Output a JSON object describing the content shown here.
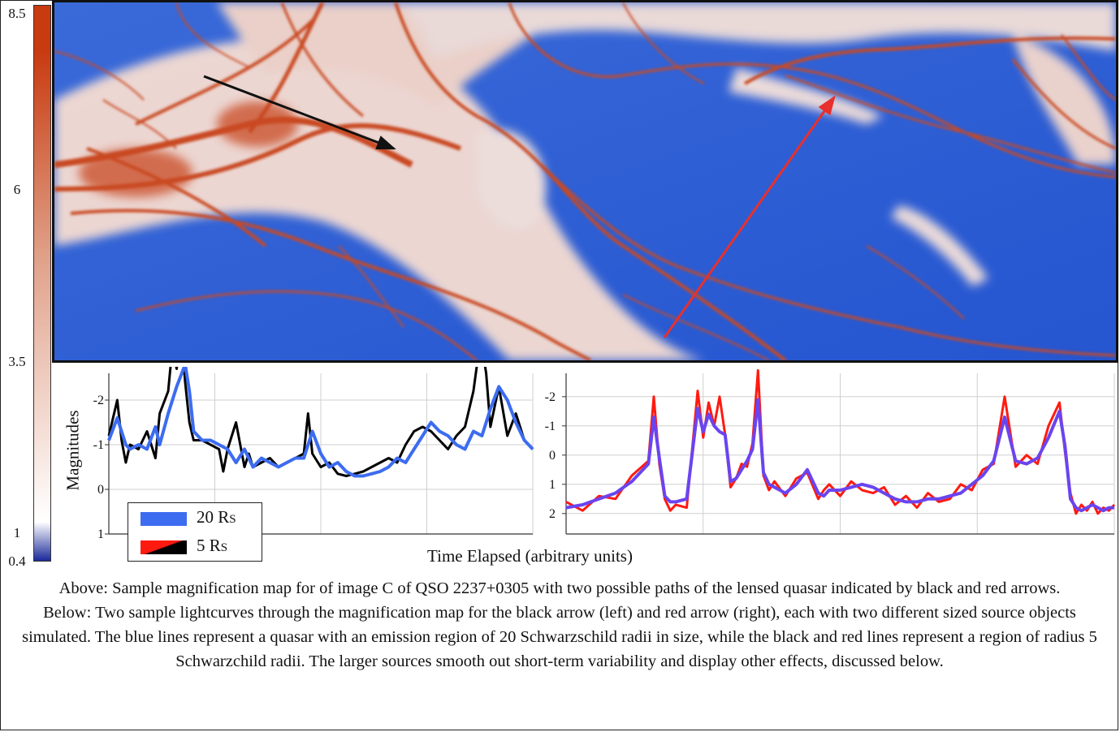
{
  "colorbar": {
    "ticks": [
      "8.5",
      "6",
      "3.5",
      "1",
      "0.4"
    ],
    "colors": {
      "top": "#c83a10",
      "mid": "#ffffff",
      "bottom": "#1a2a9a"
    }
  },
  "magmap": {
    "colors": {
      "low": "#2f5fd4",
      "caustic": "#c94a22",
      "halo": "#f4d8cc"
    },
    "arrows": [
      {
        "color": "#111111",
        "name": "black arrow"
      },
      {
        "color": "#e8302c",
        "name": "red arrow"
      }
    ]
  },
  "legend": {
    "items": [
      {
        "label": "20 R",
        "sub": "S",
        "color": "#3c6cf0"
      },
      {
        "label": "5 R",
        "sub": "S",
        "color": "#ff1a10",
        "color2": "#000000"
      }
    ]
  },
  "axes": {
    "ylabel": "Magnitudes",
    "xlabel": "Time Elapsed (arbitrary units)"
  },
  "chart_data": [
    {
      "type": "line",
      "title": "",
      "ylabel": "Magnitudes",
      "ylim": [
        1,
        -2.6
      ],
      "yticks": [
        "-2",
        "-1",
        "0",
        "1"
      ],
      "xlim": [
        0,
        100
      ],
      "series": [
        {
          "name": "20 Rs",
          "color": "#3c6cf0",
          "x": [
            0,
            2,
            4,
            5,
            7,
            9,
            11,
            12,
            14,
            16,
            18,
            19,
            20,
            22,
            24,
            26,
            28,
            30,
            32,
            34,
            36,
            38,
            40,
            42,
            44,
            46,
            48,
            50,
            52,
            54,
            56,
            58,
            60,
            62,
            64,
            66,
            68,
            70,
            72,
            74,
            76,
            78,
            80,
            82,
            84,
            86,
            88,
            90,
            92,
            94,
            96,
            98,
            100
          ],
          "y": [
            -1.1,
            -1.6,
            -1.0,
            -0.9,
            -1.0,
            -0.9,
            -1.4,
            -1.0,
            -1.7,
            -2.3,
            -2.8,
            -2.2,
            -1.3,
            -1.1,
            -1.1,
            -1.0,
            -0.9,
            -0.6,
            -0.9,
            -0.5,
            -0.7,
            -0.6,
            -0.5,
            -0.6,
            -0.7,
            -0.7,
            -1.3,
            -0.8,
            -0.5,
            -0.6,
            -0.4,
            -0.3,
            -0.3,
            -0.35,
            -0.4,
            -0.5,
            -0.7,
            -0.6,
            -0.9,
            -1.2,
            -1.5,
            -1.3,
            -1.2,
            -1.0,
            -0.9,
            -1.3,
            -1.2,
            -1.8,
            -2.3,
            -2.0,
            -1.5,
            -1.1,
            -0.9
          ]
        },
        {
          "name": "5 Rs",
          "color": "#000000",
          "x": [
            0,
            2,
            3,
            4,
            5,
            7,
            9,
            11,
            12,
            14,
            15,
            16,
            17,
            18,
            19,
            20,
            22,
            24,
            26,
            27,
            28,
            30,
            32,
            33,
            34,
            36,
            38,
            40,
            42,
            44,
            46,
            47,
            48,
            50,
            52,
            54,
            56,
            58,
            60,
            62,
            64,
            66,
            68,
            70,
            72,
            74,
            76,
            78,
            80,
            82,
            84,
            86,
            87,
            88,
            89,
            90,
            92,
            94,
            96,
            98,
            100
          ],
          "y": [
            -1.2,
            -2.0,
            -1.1,
            -0.6,
            -1.0,
            -0.9,
            -1.3,
            -0.7,
            -1.7,
            -2.2,
            -3.2,
            -2.7,
            -3.6,
            -2.4,
            -1.5,
            -1.1,
            -1.1,
            -1.0,
            -0.9,
            -0.4,
            -0.9,
            -1.5,
            -0.5,
            -0.8,
            -0.5,
            -0.6,
            -0.7,
            -0.5,
            -0.6,
            -0.7,
            -0.8,
            -1.7,
            -0.8,
            -0.5,
            -0.6,
            -0.35,
            -0.3,
            -0.35,
            -0.4,
            -0.5,
            -0.6,
            -0.7,
            -0.6,
            -1.0,
            -1.3,
            -1.4,
            -1.3,
            -1.1,
            -0.9,
            -1.2,
            -1.4,
            -2.2,
            -2.9,
            -3.2,
            -2.6,
            -1.4,
            -2.3,
            -1.2,
            -1.7,
            -1.1,
            -0.9
          ]
        }
      ]
    },
    {
      "type": "line",
      "title": "",
      "ylabel": "",
      "ylim": [
        2.7,
        -2.8
      ],
      "yticks": [
        "-2",
        "-1",
        "0",
        "1",
        "2"
      ],
      "xlim": [
        0,
        100
      ],
      "series": [
        {
          "name": "20 Rs",
          "color": "#6a44f0",
          "x": [
            0,
            3,
            6,
            9,
            12,
            15,
            16,
            17,
            18,
            19,
            20,
            22,
            24,
            25,
            26,
            27,
            28,
            29,
            30,
            31,
            32,
            33,
            34,
            35,
            36,
            37,
            38,
            40,
            42,
            44,
            46,
            47,
            48,
            50,
            52,
            54,
            56,
            58,
            60,
            62,
            64,
            66,
            68,
            70,
            72,
            74,
            76,
            78,
            80,
            82,
            84,
            86,
            88,
            90,
            91,
            92,
            93,
            94,
            95,
            96,
            97,
            98,
            99,
            100
          ],
          "y": [
            1.8,
            1.7,
            1.5,
            1.3,
            0.9,
            0.3,
            -1.3,
            0.1,
            1.4,
            1.6,
            1.6,
            1.5,
            -1.6,
            -0.8,
            -1.4,
            -1.0,
            -0.8,
            -0.7,
            0.9,
            0.8,
            0.5,
            0.2,
            -0.2,
            -1.9,
            0.6,
            1.0,
            1.1,
            1.3,
            1.0,
            0.5,
            1.3,
            1.4,
            1.2,
            1.2,
            1.1,
            1.0,
            1.1,
            1.3,
            1.5,
            1.6,
            1.6,
            1.5,
            1.5,
            1.4,
            1.3,
            1.0,
            0.7,
            0.2,
            -1.3,
            0.2,
            0.3,
            0.1,
            -0.6,
            -1.5,
            -0.3,
            1.5,
            1.8,
            1.9,
            1.8,
            1.7,
            1.8,
            1.9,
            1.8,
            1.8
          ]
        },
        {
          "name": "5 Rs",
          "color": "#ff1a10",
          "x": [
            0,
            3,
            6,
            9,
            12,
            15,
            16,
            17,
            18,
            19,
            20,
            22,
            24,
            25,
            26,
            27,
            28,
            29,
            30,
            31,
            32,
            33,
            34,
            35,
            36,
            37,
            38,
            40,
            42,
            44,
            46,
            47,
            48,
            50,
            52,
            54,
            56,
            58,
            60,
            62,
            64,
            66,
            68,
            70,
            72,
            74,
            76,
            78,
            80,
            82,
            84,
            86,
            88,
            90,
            91,
            92,
            93,
            94,
            95,
            96,
            97,
            98,
            99,
            100
          ],
          "y": [
            1.6,
            1.9,
            1.4,
            1.5,
            0.7,
            0.2,
            -2.0,
            0.3,
            1.5,
            1.9,
            1.7,
            1.8,
            -2.2,
            -0.6,
            -1.8,
            -1.0,
            -2.0,
            -0.7,
            1.1,
            0.8,
            0.3,
            0.4,
            -0.4,
            -2.9,
            0.7,
            1.2,
            0.9,
            1.4,
            0.8,
            0.6,
            1.5,
            1.2,
            1.0,
            1.4,
            0.9,
            1.2,
            1.3,
            1.1,
            1.7,
            1.4,
            1.8,
            1.3,
            1.6,
            1.5,
            1.0,
            1.2,
            0.5,
            0.3,
            -2.0,
            0.4,
            0.0,
            0.3,
            -1.0,
            -1.8,
            -0.1,
            1.3,
            2.0,
            1.7,
            1.9,
            1.6,
            2.0,
            1.8,
            1.9,
            1.7
          ]
        }
      ]
    }
  ],
  "caption": {
    "line1": "Above: Sample magnification map for of image C of QSO 2237+0305 with two possible paths of the lensed quasar indicated by black and red arrows.",
    "line2": "Below: Two sample lightcurves through the magnification map for the black arrow (left) and red arrow (right), each with two different sized source objects simulated. The blue lines represent a quasar with an emission region of 20 Schwarzschild radii in size, while the black and red lines represent a region of radius 5 Schwarzchild radii. The larger sources smooth out short-term variability and display other effects, discussed below."
  }
}
